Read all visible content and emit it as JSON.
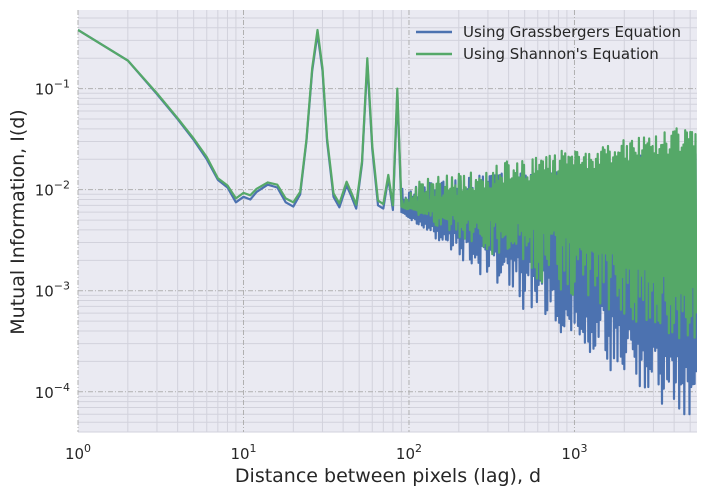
{
  "chart_data": {
    "type": "line",
    "title": "",
    "xlabel": "Distance between pixels (lag), d",
    "ylabel": "Mutual Information, I(d)",
    "xscale": "log",
    "yscale": "log",
    "xlim": [
      1,
      5500
    ],
    "ylim": [
      4e-05,
      0.6
    ],
    "x_ticks": [
      {
        "value": 1,
        "base": "10",
        "exp": "0"
      },
      {
        "value": 10,
        "base": "10",
        "exp": "1"
      },
      {
        "value": 100,
        "base": "10",
        "exp": "2"
      },
      {
        "value": 1000,
        "base": "10",
        "exp": "3"
      }
    ],
    "y_ticks": [
      {
        "value": 0.0001,
        "base": "10",
        "exp": "−4"
      },
      {
        "value": 0.001,
        "base": "10",
        "exp": "−3"
      },
      {
        "value": 0.01,
        "base": "10",
        "exp": "−2"
      },
      {
        "value": 0.1,
        "base": "10",
        "exp": "−1"
      }
    ],
    "grid": true,
    "legend_position": "top-right",
    "background": "#eaeaf2",
    "series": [
      {
        "name": "Using Grassbergers Equation",
        "color": "#4c72b0",
        "points": [
          [
            1,
            0.38
          ],
          [
            2,
            0.19
          ],
          [
            3,
            0.088
          ],
          [
            4,
            0.05
          ],
          [
            5,
            0.031
          ],
          [
            6,
            0.02
          ],
          [
            7,
            0.0125
          ],
          [
            8,
            0.0105
          ],
          [
            9,
            0.0075
          ],
          [
            10,
            0.0085
          ],
          [
            11,
            0.008
          ],
          [
            12,
            0.0095
          ],
          [
            14,
            0.0112
          ],
          [
            16,
            0.0105
          ],
          [
            18,
            0.0075
          ],
          [
            20,
            0.0068
          ],
          [
            22,
            0.009
          ],
          [
            24,
            0.03
          ],
          [
            26,
            0.15
          ],
          [
            28,
            0.35
          ],
          [
            30,
            0.15
          ],
          [
            32,
            0.03
          ],
          [
            35,
            0.0085
          ],
          [
            38,
            0.0067
          ],
          [
            42,
            0.011
          ],
          [
            45,
            0.0085
          ],
          [
            48,
            0.0065
          ],
          [
            52,
            0.018
          ],
          [
            56,
            0.18
          ],
          [
            60,
            0.025
          ],
          [
            65,
            0.007
          ],
          [
            70,
            0.0065
          ],
          [
            75,
            0.013
          ],
          [
            80,
            0.0063
          ],
          [
            85,
            0.09
          ],
          [
            90,
            0.0068
          ]
        ],
        "band": {
          "x_start": 90,
          "x_end": 5500,
          "min_start": 0.006,
          "min_end": 6.5e-05,
          "max_start": 0.011,
          "max_end": 0.026,
          "floor": 6e-05
        }
      },
      {
        "name": "Using Shannon's Equation",
        "color": "#55a868",
        "points": [
          [
            1,
            0.38
          ],
          [
            2,
            0.19
          ],
          [
            3,
            0.09
          ],
          [
            4,
            0.051
          ],
          [
            5,
            0.032
          ],
          [
            6,
            0.021
          ],
          [
            7,
            0.013
          ],
          [
            8,
            0.011
          ],
          [
            9,
            0.0082
          ],
          [
            10,
            0.0093
          ],
          [
            11,
            0.0088
          ],
          [
            12,
            0.0102
          ],
          [
            14,
            0.0118
          ],
          [
            16,
            0.0112
          ],
          [
            18,
            0.0082
          ],
          [
            20,
            0.0075
          ],
          [
            22,
            0.0095
          ],
          [
            24,
            0.031
          ],
          [
            26,
            0.16
          ],
          [
            28,
            0.38
          ],
          [
            30,
            0.16
          ],
          [
            32,
            0.032
          ],
          [
            35,
            0.0092
          ],
          [
            38,
            0.0073
          ],
          [
            42,
            0.012
          ],
          [
            45,
            0.0092
          ],
          [
            48,
            0.0071
          ],
          [
            52,
            0.019
          ],
          [
            56,
            0.2
          ],
          [
            60,
            0.027
          ],
          [
            65,
            0.0078
          ],
          [
            70,
            0.0072
          ],
          [
            75,
            0.014
          ],
          [
            80,
            0.007
          ],
          [
            85,
            0.1
          ],
          [
            90,
            0.0075
          ]
        ],
        "band": {
          "x_start": 90,
          "x_end": 5500,
          "min_start": 0.0068,
          "min_end": 0.0004,
          "max_start": 0.012,
          "max_end": 0.045,
          "floor": 0.0002
        }
      }
    ]
  }
}
